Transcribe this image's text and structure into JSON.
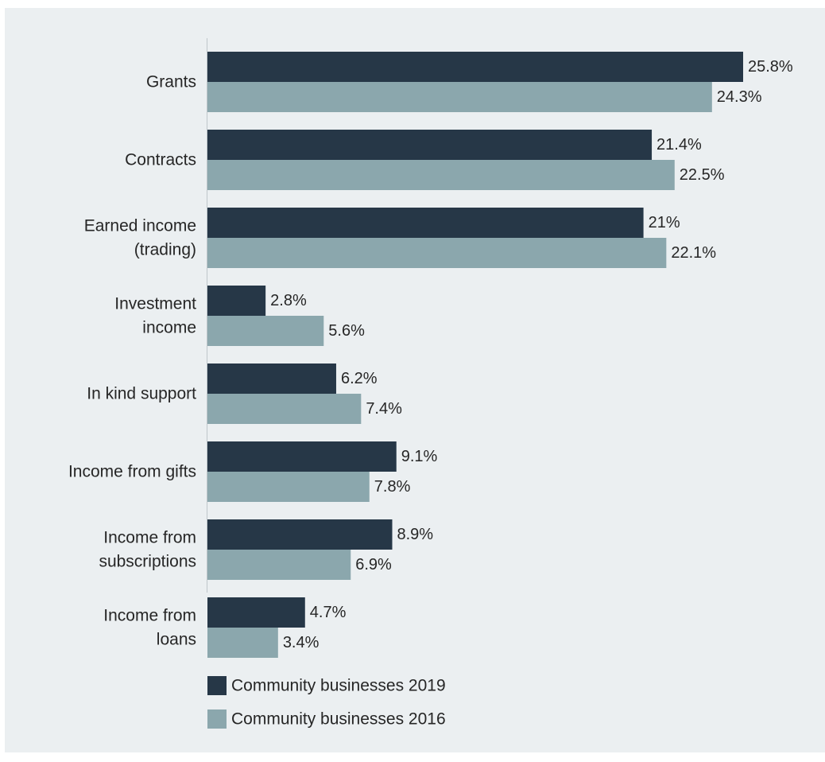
{
  "chart_data": {
    "type": "bar",
    "orientation": "horizontal",
    "title": "",
    "xlabel": "",
    "ylabel": "",
    "categories": [
      [
        "Grants"
      ],
      [
        "Contracts"
      ],
      [
        "Earned income",
        "(trading)"
      ],
      [
        "Investment",
        "income"
      ],
      [
        "In kind support"
      ],
      [
        "Income from gifts"
      ],
      [
        "Income from",
        "subscriptions"
      ],
      [
        "Income from",
        "loans"
      ]
    ],
    "series": [
      {
        "name": "Community businesses 2019",
        "color": "#263747",
        "values": [
          25.8,
          21.4,
          21,
          2.8,
          6.2,
          9.1,
          8.9,
          4.7
        ],
        "labels": [
          "25.8%",
          "21.4%",
          "21%",
          "2.8%",
          "6.2%",
          "9.1%",
          "8.9%",
          "4.7%"
        ]
      },
      {
        "name": "Community businesses 2016",
        "color": "#8ba7ad",
        "values": [
          24.3,
          22.5,
          22.1,
          5.6,
          7.4,
          7.8,
          6.9,
          3.4
        ],
        "labels": [
          "24.3%",
          "22.5%",
          "22.1%",
          "5.6%",
          "7.4%",
          "7.8%",
          "6.9%",
          "3.4%"
        ]
      }
    ],
    "xlim": [
      0,
      25.8
    ],
    "grid": false,
    "legend_position": "bottom-left",
    "background": "#ebeff1",
    "axis_color": "#bfc6ca",
    "text_color": "#262626"
  }
}
